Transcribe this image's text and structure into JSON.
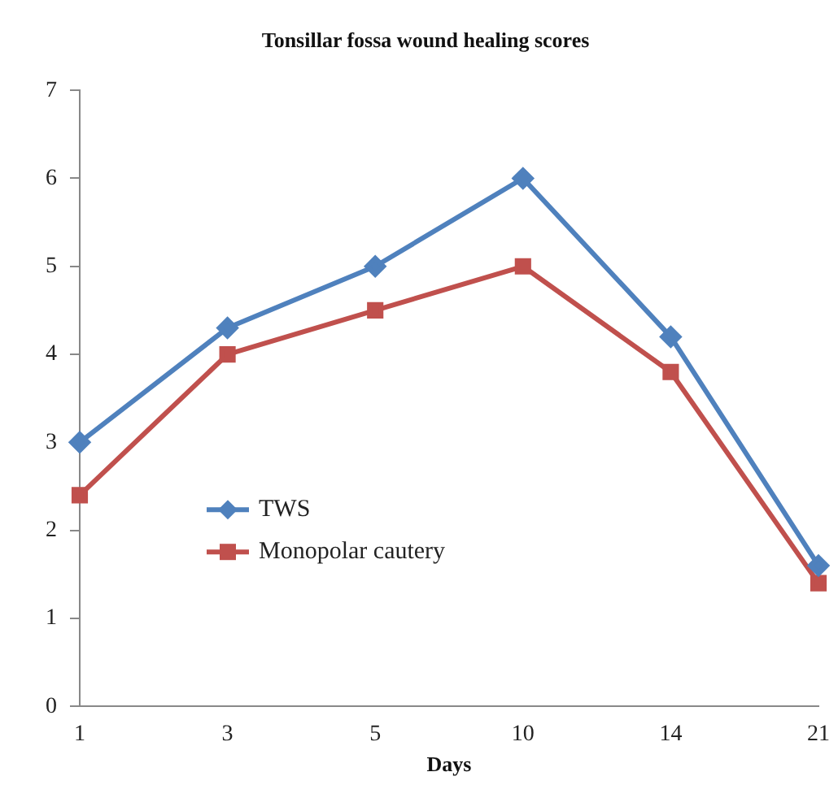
{
  "chart_data": {
    "type": "line",
    "title": "Tonsillar fossa wound healing scores",
    "xlabel": "Days",
    "categories": [
      "1",
      "3",
      "5",
      "10",
      "14",
      "21"
    ],
    "series": [
      {
        "name": "TWS",
        "color": "#4f81bd",
        "marker": "diamond",
        "values": [
          3,
          4.3,
          5,
          6,
          4.2,
          1.6
        ]
      },
      {
        "name": "Monopolar cautery",
        "color": "#c0504d",
        "marker": "square",
        "values": [
          2.4,
          4,
          4.5,
          5,
          3.8,
          1.4
        ]
      }
    ],
    "ylim": [
      0,
      7
    ],
    "yticks": [
      0,
      1,
      2,
      3,
      4,
      5,
      6,
      7
    ],
    "grid": false,
    "legend": "bottom left"
  }
}
